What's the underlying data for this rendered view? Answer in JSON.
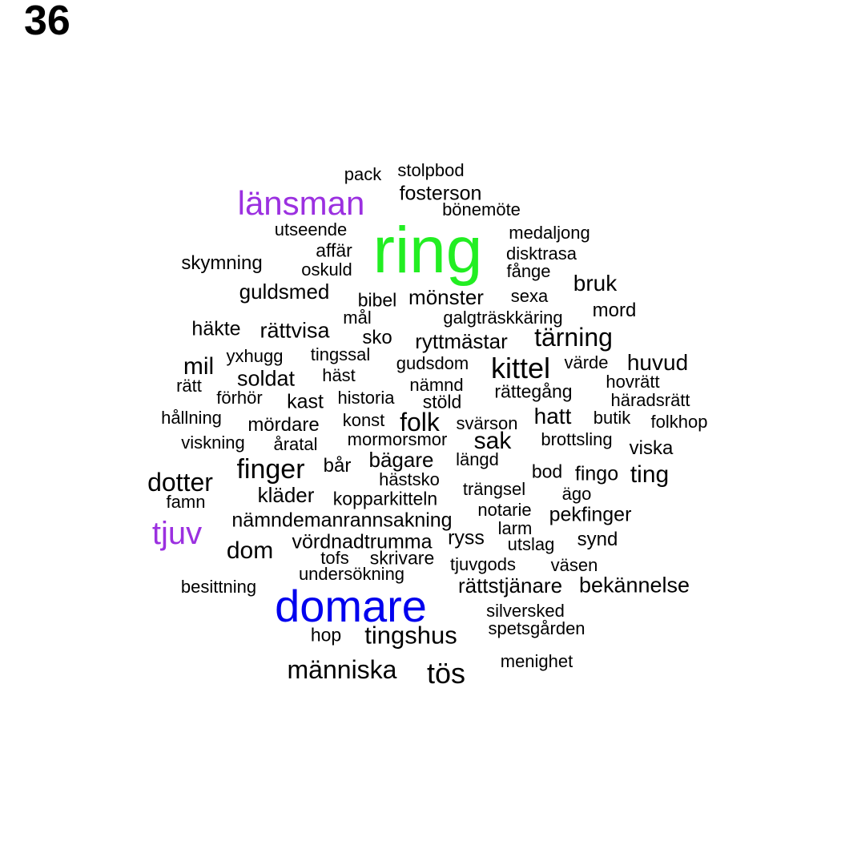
{
  "label": "36",
  "colors": {
    "default": "#000000",
    "green": "#22ee22",
    "purple": "#9b30e0",
    "blue": "#0000ee"
  },
  "words": [
    {
      "t": "pack"
    },
    {
      "t": "stolpbod"
    },
    {
      "t": "fosterson"
    },
    {
      "t": "länsman",
      "c": "purple"
    },
    {
      "t": "bönemöte"
    },
    {
      "t": "utseende"
    },
    {
      "t": "ring",
      "c": "green"
    },
    {
      "t": "medaljong"
    },
    {
      "t": "affär"
    },
    {
      "t": "disktrasa"
    },
    {
      "t": "skymning"
    },
    {
      "t": "oskuld"
    },
    {
      "t": "fånge"
    },
    {
      "t": "bruk"
    },
    {
      "t": "guldsmed"
    },
    {
      "t": "bibel"
    },
    {
      "t": "mönster"
    },
    {
      "t": "sexa"
    },
    {
      "t": "mord"
    },
    {
      "t": "mål"
    },
    {
      "t": "galgträskkäring"
    },
    {
      "t": "häkte"
    },
    {
      "t": "rättvisa"
    },
    {
      "t": "sko"
    },
    {
      "t": "ryttmästar"
    },
    {
      "t": "tärning"
    },
    {
      "t": "yxhugg"
    },
    {
      "t": "tingssal"
    },
    {
      "t": "gudsdom"
    },
    {
      "t": "mil"
    },
    {
      "t": "kittel"
    },
    {
      "t": "värde"
    },
    {
      "t": "huvud"
    },
    {
      "t": "häst"
    },
    {
      "t": "soldat"
    },
    {
      "t": "hovrätt"
    },
    {
      "t": "rätt"
    },
    {
      "t": "nämnd"
    },
    {
      "t": "rättegång"
    },
    {
      "t": "förhör"
    },
    {
      "t": "kast"
    },
    {
      "t": "historia"
    },
    {
      "t": "stöld"
    },
    {
      "t": "häradsrätt"
    },
    {
      "t": "hållning"
    },
    {
      "t": "konst"
    },
    {
      "t": "folk"
    },
    {
      "t": "hatt"
    },
    {
      "t": "butik"
    },
    {
      "t": "svärson"
    },
    {
      "t": "folkhop"
    },
    {
      "t": "mördare"
    },
    {
      "t": "viskning"
    },
    {
      "t": "åratal"
    },
    {
      "t": "mormorsmor"
    },
    {
      "t": "sak"
    },
    {
      "t": "brottsling"
    },
    {
      "t": "viska"
    },
    {
      "t": "bägare"
    },
    {
      "t": "längd"
    },
    {
      "t": "finger"
    },
    {
      "t": "bår"
    },
    {
      "t": "bod"
    },
    {
      "t": "fingo"
    },
    {
      "t": "ting"
    },
    {
      "t": "dotter"
    },
    {
      "t": "hästsko"
    },
    {
      "t": "kläder"
    },
    {
      "t": "trängsel"
    },
    {
      "t": "ägo"
    },
    {
      "t": "famn"
    },
    {
      "t": "kopparkitteln"
    },
    {
      "t": "notarie"
    },
    {
      "t": "pekfinger"
    },
    {
      "t": "tjuv",
      "c": "purple"
    },
    {
      "t": "nämndemanrannsakning"
    },
    {
      "t": "larm"
    },
    {
      "t": "vördnadtrumma"
    },
    {
      "t": "ryss"
    },
    {
      "t": "synd"
    },
    {
      "t": "utslag"
    },
    {
      "t": "dom"
    },
    {
      "t": "tofs"
    },
    {
      "t": "skrivare"
    },
    {
      "t": "tjuvgods"
    },
    {
      "t": "väsen"
    },
    {
      "t": "undersökning"
    },
    {
      "t": "besittning"
    },
    {
      "t": "rättstjänare"
    },
    {
      "t": "bekännelse"
    },
    {
      "t": "domare",
      "c": "blue"
    },
    {
      "t": "silversked"
    },
    {
      "t": "spetsgården"
    },
    {
      "t": "hop"
    },
    {
      "t": "tingshus"
    },
    {
      "t": "menighet"
    },
    {
      "t": "människa"
    },
    {
      "t": "tös"
    }
  ]
}
